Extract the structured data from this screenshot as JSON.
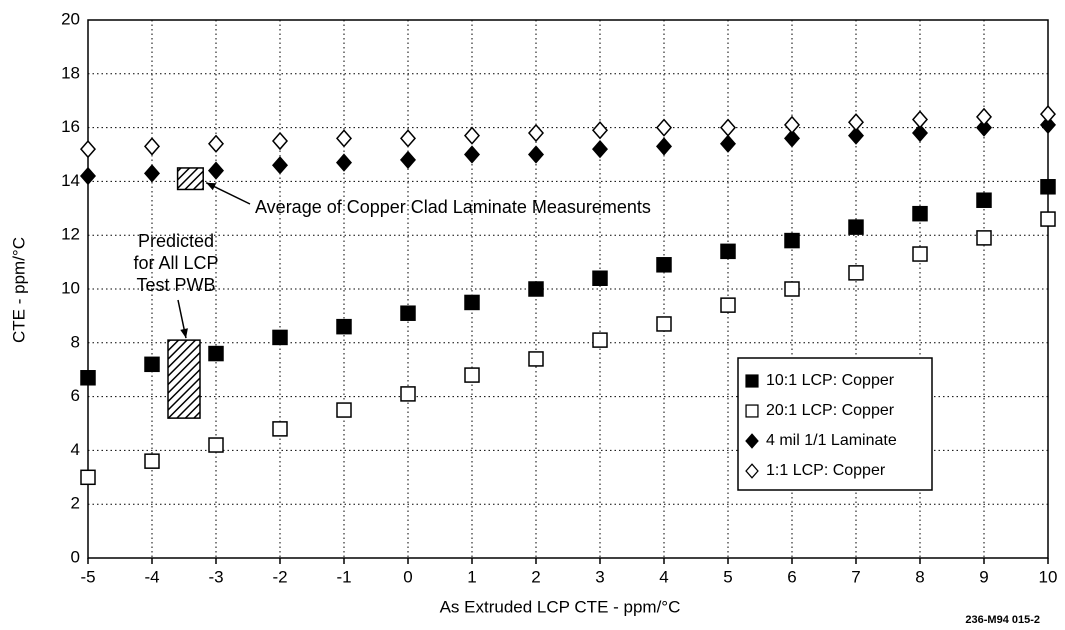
{
  "chart_data": {
    "type": "scatter",
    "xlabel": "As Extruded LCP CTE - ppm/°C",
    "ylabel": "CTE - ppm/°C",
    "xlim": [
      -5,
      10
    ],
    "ylim": [
      0,
      20
    ],
    "xticks": [
      -5,
      -4,
      -3,
      -2,
      -1,
      0,
      1,
      2,
      3,
      4,
      5,
      6,
      7,
      8,
      9,
      10
    ],
    "yticks": [
      0,
      2,
      4,
      6,
      8,
      10,
      12,
      14,
      16,
      18,
      20
    ],
    "grid": true,
    "legend": "lower right",
    "x": [
      -5,
      -4,
      -3,
      -2,
      -1,
      0,
      1,
      2,
      3,
      4,
      5,
      6,
      7,
      8,
      9,
      10
    ],
    "series": [
      {
        "name": "10:1 LCP: Copper",
        "color": "#000000",
        "marker": "square",
        "filled": true,
        "values": [
          6.7,
          7.2,
          7.6,
          8.2,
          8.6,
          9.1,
          9.5,
          10.0,
          10.4,
          10.9,
          11.4,
          11.8,
          12.3,
          12.8,
          13.3,
          13.8
        ]
      },
      {
        "name": "20:1 LCP: Copper",
        "color": "#000000",
        "marker": "square",
        "filled": false,
        "values": [
          3.0,
          3.6,
          4.2,
          4.8,
          5.5,
          6.1,
          6.8,
          7.4,
          8.1,
          8.7,
          9.4,
          10.0,
          10.6,
          11.3,
          11.9,
          12.6
        ]
      },
      {
        "name": "4 mil 1/1 Laminate",
        "color": "#000000",
        "marker": "diamond",
        "filled": true,
        "values": [
          14.2,
          14.3,
          14.4,
          14.6,
          14.7,
          14.8,
          15.0,
          15.0,
          15.2,
          15.3,
          15.4,
          15.6,
          15.7,
          15.8,
          16.0,
          16.1
        ]
      },
      {
        "name": "1:1 LCP: Copper",
        "color": "#000000",
        "marker": "diamond",
        "filled": false,
        "values": [
          15.2,
          15.3,
          15.4,
          15.5,
          15.6,
          15.6,
          15.7,
          15.8,
          15.9,
          16.0,
          16.0,
          16.1,
          16.2,
          16.3,
          16.4,
          16.5
        ]
      }
    ],
    "annotations": [
      {
        "text": [
          "Average of Copper Clad Laminate Measurements"
        ],
        "x": [
          -3.6,
          -3.2
        ],
        "y": [
          13.7,
          14.5
        ]
      },
      {
        "text": [
          "Predicted",
          "for All LCP",
          "Test PWB"
        ],
        "x": [
          -3.75,
          -3.25
        ],
        "y": [
          5.2,
          8.1
        ]
      }
    ],
    "footnote": "236-M94 015-2"
  }
}
